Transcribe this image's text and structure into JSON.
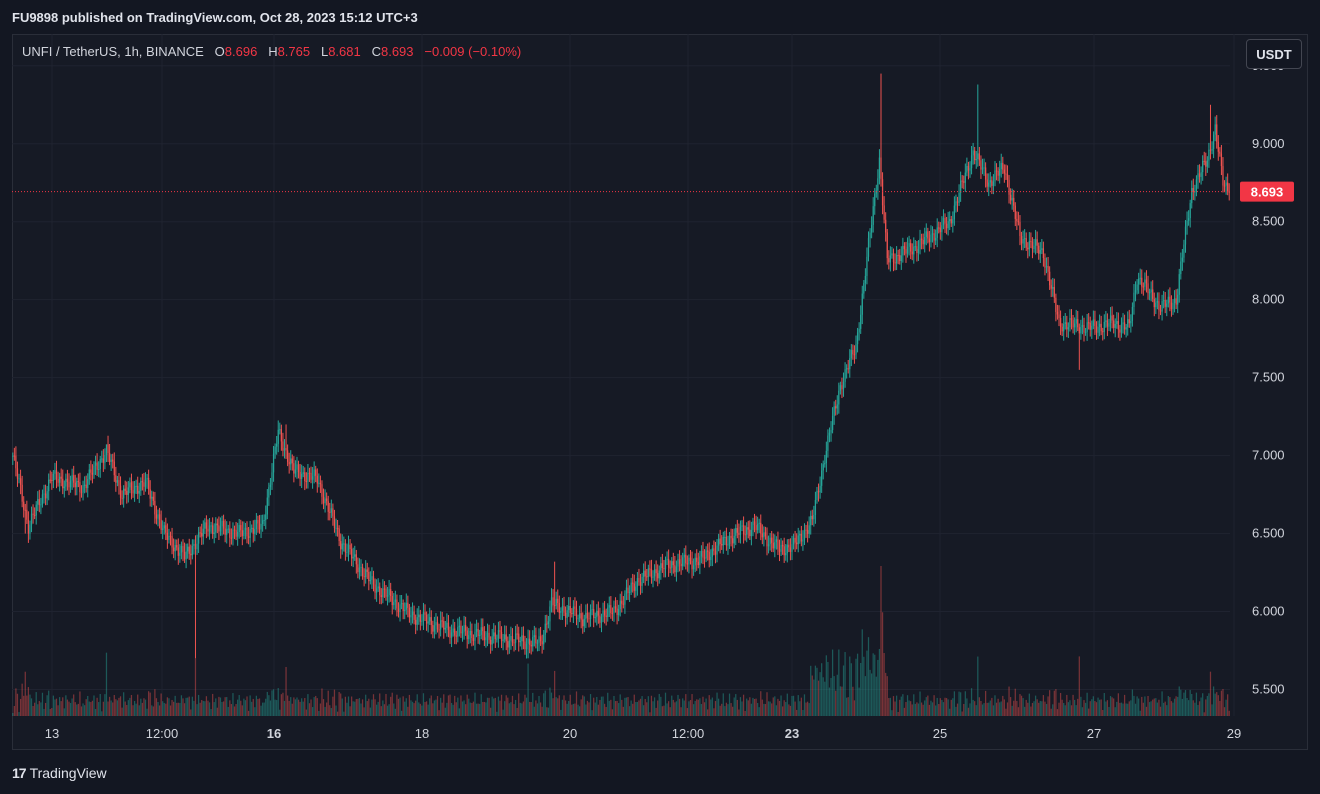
{
  "header": {
    "published_text": "FU9898 published on TradingView.com, Oct 28, 2023 15:12 UTC+3"
  },
  "legend": {
    "symbol": "UNFI / TetherUS, 1h, BINANCE",
    "open_label": "O",
    "open_value": "8.696",
    "high_label": "H",
    "high_value": "8.765",
    "low_label": "L",
    "low_value": "8.681",
    "close_label": "C",
    "close_value": "8.693",
    "change": "−0.009 (−0.10%)"
  },
  "currency_button": "USDT",
  "footer": {
    "brand": "TradingView",
    "logo_icon": "tradingview-logo-icon"
  },
  "colors": {
    "up": "#26a69a",
    "down": "#ef5350",
    "background": "#161a25",
    "grid": "#1f2330",
    "price_line": "#f23645",
    "last_price_badge": "#f23645"
  },
  "chart_data": {
    "type": "candlestick",
    "x_tick_labels": [
      "13",
      "12:00",
      "16",
      "18",
      "20",
      "12:00",
      "23",
      "25",
      "27",
      "29"
    ],
    "y_tick_labels": [
      "9.500",
      "9.000",
      "8.500",
      "8.000",
      "7.500",
      "7.000",
      "6.500",
      "6.000",
      "5.500"
    ],
    "y_ticks": [
      9.5,
      9.0,
      8.5,
      8.0,
      7.5,
      7.0,
      6.5,
      6.0,
      5.5
    ],
    "ylim": [
      5.33,
      9.55
    ],
    "last_price": 8.693,
    "last_price_label": "8.693",
    "anchors": [
      [
        0,
        7.0
      ],
      [
        10,
        6.55
      ],
      [
        25,
        6.86
      ],
      [
        45,
        6.8
      ],
      [
        60,
        7.03
      ],
      [
        70,
        6.75
      ],
      [
        85,
        6.83
      ],
      [
        97,
        6.5
      ],
      [
        110,
        6.35
      ],
      [
        125,
        6.55
      ],
      [
        145,
        6.5
      ],
      [
        160,
        6.55
      ],
      [
        170,
        7.15
      ],
      [
        180,
        6.9
      ],
      [
        195,
        6.85
      ],
      [
        210,
        6.45
      ],
      [
        230,
        6.18
      ],
      [
        255,
        5.98
      ],
      [
        280,
        5.88
      ],
      [
        300,
        5.85
      ],
      [
        320,
        5.82
      ],
      [
        338,
        5.8
      ],
      [
        345,
        6.05
      ],
      [
        365,
        5.96
      ],
      [
        385,
        6.0
      ],
      [
        400,
        6.2
      ],
      [
        420,
        6.3
      ],
      [
        440,
        6.33
      ],
      [
        460,
        6.48
      ],
      [
        475,
        6.55
      ],
      [
        490,
        6.4
      ],
      [
        500,
        6.42
      ],
      [
        512,
        6.58
      ],
      [
        520,
        7.0
      ],
      [
        530,
        7.45
      ],
      [
        540,
        7.7
      ],
      [
        555,
        8.9
      ],
      [
        560,
        8.25
      ],
      [
        580,
        8.35
      ],
      [
        600,
        8.5
      ],
      [
        615,
        8.95
      ],
      [
        625,
        8.75
      ],
      [
        635,
        8.85
      ],
      [
        645,
        8.4
      ],
      [
        660,
        8.3
      ],
      [
        670,
        7.85
      ],
      [
        690,
        7.82
      ],
      [
        705,
        7.85
      ],
      [
        715,
        7.82
      ],
      [
        720,
        8.15
      ],
      [
        735,
        7.95
      ],
      [
        745,
        8.0
      ],
      [
        755,
        8.7
      ],
      [
        765,
        8.9
      ],
      [
        770,
        9.1
      ],
      [
        775,
        8.75
      ],
      [
        779,
        8.693
      ]
    ],
    "spikes": [
      [
        8,
        "low",
        6.5
      ],
      [
        60,
        "high",
        7.05
      ],
      [
        117,
        "low",
        5.7
      ],
      [
        175,
        "high",
        7.2
      ],
      [
        330,
        "low",
        5.7
      ],
      [
        347,
        "high",
        6.32
      ],
      [
        556,
        "high",
        9.45
      ],
      [
        618,
        "high",
        9.38
      ],
      [
        683,
        "low",
        7.55
      ],
      [
        767,
        "high",
        9.25
      ]
    ]
  }
}
